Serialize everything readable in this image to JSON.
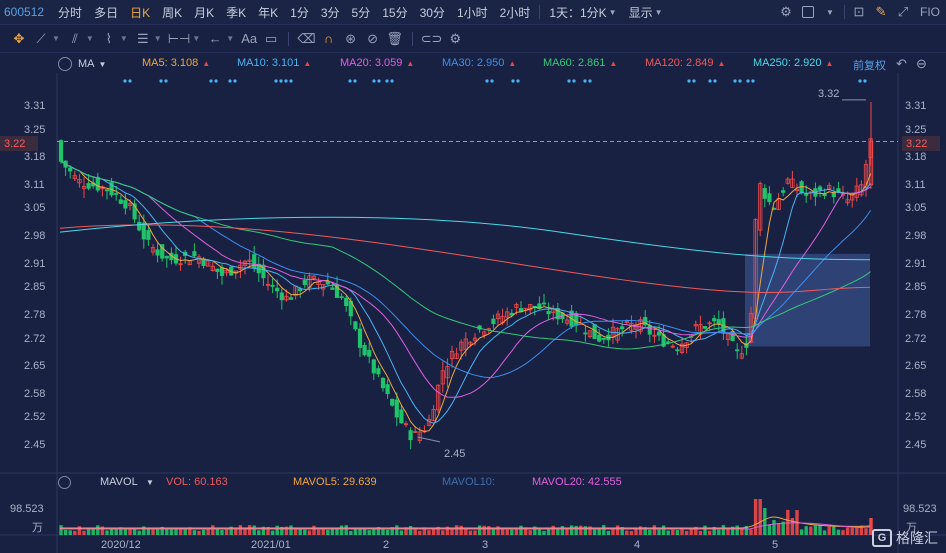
{
  "toolbar": {
    "symbol": "600512",
    "periods": [
      "分时",
      "多日",
      "日K",
      "周K",
      "月K",
      "季K",
      "年K",
      "1分",
      "3分",
      "5分",
      "15分",
      "30分",
      "1小时",
      "2小时"
    ],
    "active_period": "日K",
    "range_select": "1天：1分K",
    "display_label": "显示",
    "fio_label": "FIO"
  },
  "drawing_tools": [
    "crosshair",
    "line",
    "channel",
    "wave",
    "fibonacci",
    "measure",
    "arrow",
    "text",
    "note",
    "eraser",
    "magnet",
    "link",
    "hide",
    "delete",
    "toggle",
    "settings"
  ],
  "ma_legend": {
    "name": "MA",
    "items": [
      {
        "label": "MA5: 3.108",
        "color": "#f0a640"
      },
      {
        "label": "MA10: 3.101",
        "color": "#4ab3f5"
      },
      {
        "label": "MA20: 3.059",
        "color": "#e060e0"
      },
      {
        "label": "MA30: 2.950",
        "color": "#3c8ef0"
      },
      {
        "label": "MA60: 2.861",
        "color": "#36c879"
      },
      {
        "label": "MA120: 2.849",
        "color": "#f05a5a"
      },
      {
        "label": "MA250: 2.920",
        "color": "#4ad9e8"
      }
    ],
    "adjust_label": "前复权"
  },
  "price_axis": [
    "3.31",
    "3.25",
    "3.18",
    "3.11",
    "3.05",
    "2.98",
    "2.91",
    "2.85",
    "2.78",
    "2.72",
    "2.65",
    "2.58",
    "2.52",
    "2.45"
  ],
  "current_price": "3.22",
  "high_label": "3.32",
  "low_label": "2.45",
  "vol_legend": {
    "name": "MAVOL",
    "items": [
      {
        "label": "VOL: 60.163",
        "color": "#f05a5a"
      },
      {
        "label": "MAVOL5: 29.639",
        "color": "#f0a640"
      },
      {
        "label": "MAVOL10:",
        "color": "#3c6fb0"
      },
      {
        "label": "MAVOL20: 42.555",
        "color": "#e060e0"
      }
    ],
    "axis_top": "98.523",
    "axis_unit": "万"
  },
  "date_axis": [
    "2020/12",
    "2021/01",
    "2",
    "3",
    "4",
    "5"
  ],
  "watermark": "格隆汇",
  "colors": {
    "up": "#f04848",
    "down": "#1fc36a",
    "bg": "#182141"
  }
}
